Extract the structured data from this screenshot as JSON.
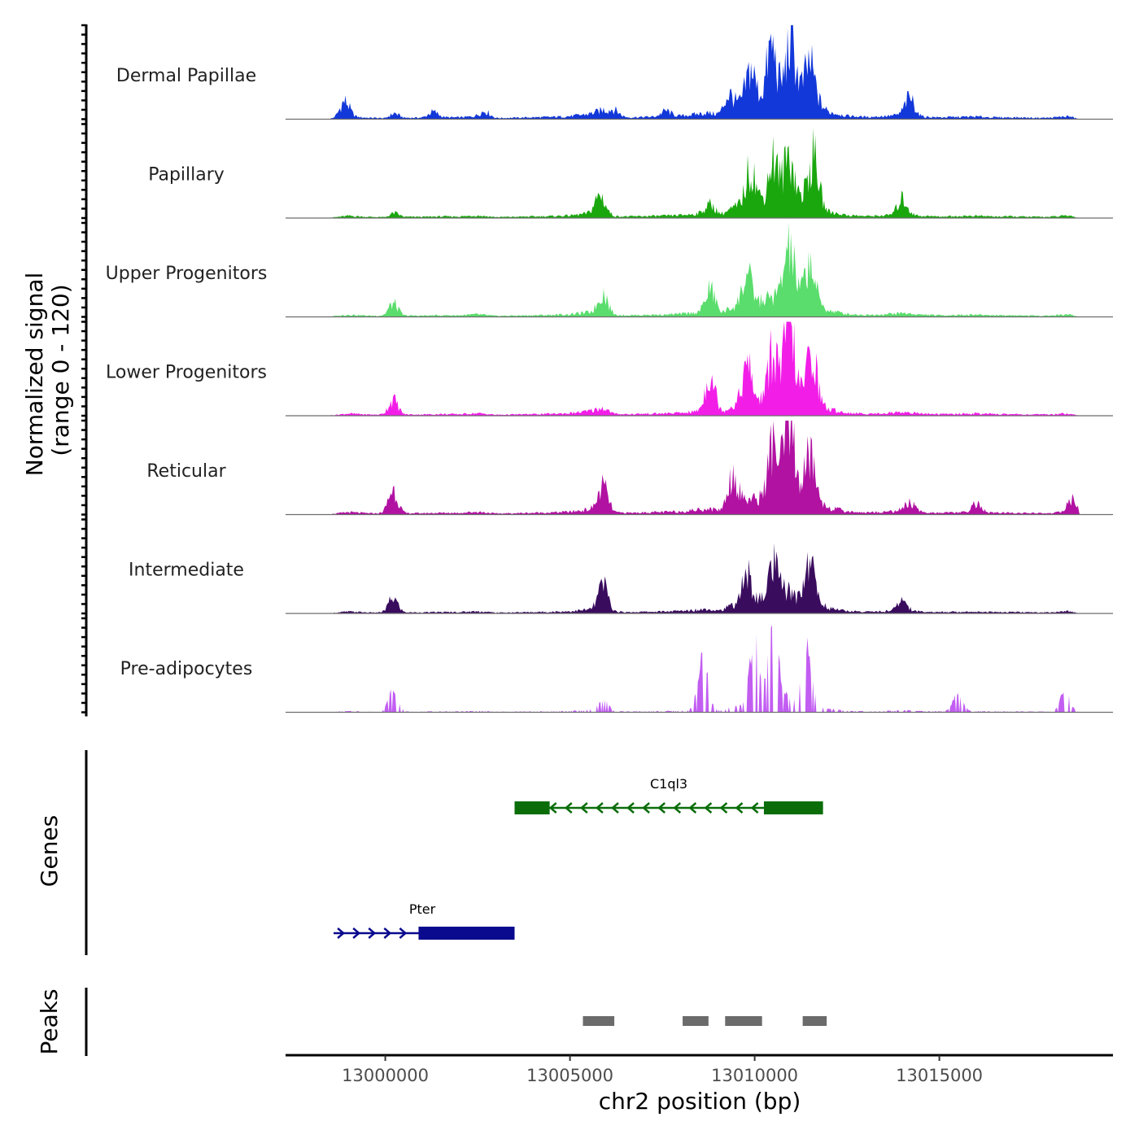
{
  "chart_data": {
    "type": "area",
    "title": "",
    "ylabel": "Normalized signal",
    "ylabel_range": "(range 0 - 120)",
    "xlabel": "chr2 position (bp)",
    "y_range": [
      0,
      120
    ],
    "xlim": [
      12997300,
      13019700
    ],
    "x_ticks": [
      13000000,
      13005000,
      13010000,
      13015000
    ],
    "x_tick_labels": [
      "13000000",
      "13005000",
      "13010000",
      "13015000"
    ],
    "region": {
      "start": 12998500,
      "end": 13018800
    },
    "profile_bins_bp": [
      [
        12998500,
        1
      ],
      [
        12999000,
        7
      ],
      [
        12999500,
        4
      ],
      [
        13000000,
        3
      ],
      [
        13000250,
        17
      ],
      [
        13000500,
        4
      ],
      [
        13001000,
        4
      ],
      [
        13001500,
        5
      ],
      [
        13002000,
        5
      ],
      [
        13002500,
        8
      ],
      [
        13003000,
        3
      ],
      [
        13003500,
        4
      ],
      [
        13004000,
        5
      ],
      [
        13004500,
        6
      ],
      [
        13005000,
        8
      ],
      [
        13005500,
        14
      ],
      [
        13005900,
        25
      ],
      [
        13006200,
        6
      ],
      [
        13006600,
        5
      ],
      [
        13007000,
        6
      ],
      [
        13007500,
        7
      ],
      [
        13008000,
        9
      ],
      [
        13008300,
        12
      ],
      [
        13008700,
        17
      ],
      [
        13009100,
        12
      ],
      [
        13009400,
        30
      ],
      [
        13009700,
        45
      ],
      [
        13010000,
        42
      ],
      [
        13010300,
        55
      ],
      [
        13010600,
        68
      ],
      [
        13010850,
        90
      ],
      [
        13011100,
        60
      ],
      [
        13011400,
        70
      ],
      [
        13011700,
        45
      ],
      [
        13012000,
        20
      ],
      [
        13012500,
        9
      ],
      [
        13013000,
        6
      ],
      [
        13013500,
        8
      ],
      [
        13014000,
        12
      ],
      [
        13014500,
        7
      ],
      [
        13015000,
        5
      ],
      [
        13015500,
        6
      ],
      [
        13016000,
        7
      ],
      [
        13016500,
        5
      ],
      [
        13017000,
        5
      ],
      [
        13017500,
        4
      ],
      [
        13018000,
        4
      ],
      [
        13018500,
        8
      ],
      [
        13018800,
        0
      ]
    ],
    "series": [
      {
        "name": "Dermal Papillae",
        "color": "#1338d9",
        "profile_scale": 0.52,
        "peaks": [
          [
            12998900,
            22
          ],
          [
            13001300,
            8
          ],
          [
            13002700,
            8
          ],
          [
            13006200,
            10
          ],
          [
            13007600,
            8
          ],
          [
            13009300,
            22
          ],
          [
            13009900,
            48
          ],
          [
            13010450,
            70
          ],
          [
            13011000,
            70
          ],
          [
            13011500,
            45
          ],
          [
            13014200,
            25
          ]
        ]
      },
      {
        "name": "Papillary",
        "color": "#1aa70e",
        "profile_scale": 0.45,
        "peaks": [
          [
            13005800,
            22
          ],
          [
            13008800,
            12
          ],
          [
            13009900,
            52
          ],
          [
            13010500,
            55
          ],
          [
            13010950,
            55
          ],
          [
            13011600,
            62
          ],
          [
            13014000,
            22
          ]
        ]
      },
      {
        "name": "Upper Progenitors",
        "color": "#5add6c",
        "profile_scale": 0.45,
        "peaks": [
          [
            13000200,
            12
          ],
          [
            13005900,
            22
          ],
          [
            13008800,
            32
          ],
          [
            13009800,
            38
          ],
          [
            13010950,
            64
          ],
          [
            13011500,
            48
          ]
        ]
      },
      {
        "name": "Lower Progenitors",
        "color": "#f21ee8",
        "profile_scale": 0.45,
        "peaks": [
          [
            13000200,
            16
          ],
          [
            13008800,
            52
          ],
          [
            13009800,
            50
          ],
          [
            13010500,
            62
          ],
          [
            13010950,
            105
          ],
          [
            13011550,
            65
          ]
        ]
      },
      {
        "name": "Reticular",
        "color": "#b112a2",
        "profile_scale": 0.5,
        "peaks": [
          [
            13000200,
            28
          ],
          [
            13005900,
            28
          ],
          [
            13009400,
            42
          ],
          [
            13010500,
            68
          ],
          [
            13010950,
            104
          ],
          [
            13011500,
            52
          ],
          [
            13014200,
            12
          ],
          [
            13016000,
            12
          ],
          [
            13018600,
            18
          ]
        ]
      },
      {
        "name": "Intermediate",
        "color": "#3a0c5e",
        "profile_scale": 0.38,
        "peaks": [
          [
            13000200,
            16
          ],
          [
            13005900,
            32
          ],
          [
            13009800,
            38
          ],
          [
            13010500,
            44
          ],
          [
            13011500,
            50
          ],
          [
            13014000,
            14
          ]
        ]
      },
      {
        "name": "Pre-adipocytes",
        "color": "#c25df2",
        "profile_scale": 0.2,
        "peaks": [
          [
            13000200,
            22
          ],
          [
            13005900,
            10
          ],
          [
            13008600,
            60
          ],
          [
            13010000,
            75
          ],
          [
            13010500,
            105
          ],
          [
            13011400,
            60
          ],
          [
            13015500,
            20
          ],
          [
            13018400,
            22
          ]
        ]
      }
    ],
    "genes_track": {
      "label": "Genes",
      "genes": [
        {
          "name": "C1ql3",
          "start": 13003500,
          "end": 13011850,
          "strand": "-",
          "color": "#0a6d0a",
          "exons": [
            [
              13003500,
              13004450
            ],
            [
              13010250,
              13011850
            ]
          ]
        },
        {
          "name": "Pter",
          "start": 12998600,
          "end": 13003500,
          "strand": "+",
          "color": "#0a0a8e",
          "exons": [
            [
              13000900,
              13003500
            ]
          ]
        }
      ]
    },
    "peaks_track": {
      "label": "Peaks",
      "color": "#6b6b6b",
      "regions": [
        [
          13005350,
          13006200
        ],
        [
          13008050,
          13008750
        ],
        [
          13009200,
          13010200
        ],
        [
          13011300,
          13011950
        ]
      ]
    }
  }
}
